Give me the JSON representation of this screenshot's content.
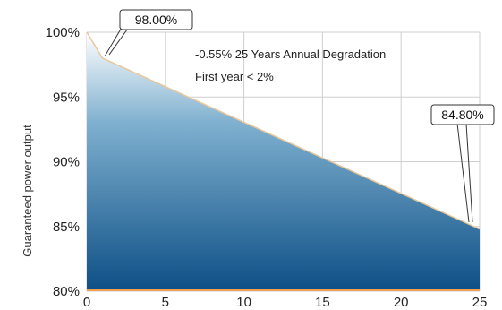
{
  "chart_data": {
    "type": "area",
    "title": "",
    "xlabel": "",
    "ylabel": "Guaranteed power output",
    "xlim": [
      0,
      25
    ],
    "ylim": [
      80,
      100
    ],
    "x_ticks": [
      0,
      5,
      10,
      15,
      20,
      25
    ],
    "y_ticks": [
      80,
      85,
      90,
      95,
      100
    ],
    "x_tick_labels": [
      "0",
      "5",
      "10",
      "15",
      "20",
      "25"
    ],
    "y_tick_labels": [
      "80%",
      "85%",
      "90%",
      "95%",
      "100%"
    ],
    "grid": true,
    "series": [
      {
        "x": [
          0,
          1,
          25
        ],
        "y": [
          100,
          98.0,
          84.8
        ]
      }
    ],
    "annotations": {
      "start_callout": "98.00%",
      "end_callout": "84.80%",
      "line1": "-0.55%  25 Years Annual Degradation",
      "line2": "First year < 2%"
    },
    "colors": {
      "area_top": "#ffffff",
      "area_bottom": "#0d4f86",
      "edge": "#e9c79a",
      "base_line": "#f0a050"
    }
  }
}
